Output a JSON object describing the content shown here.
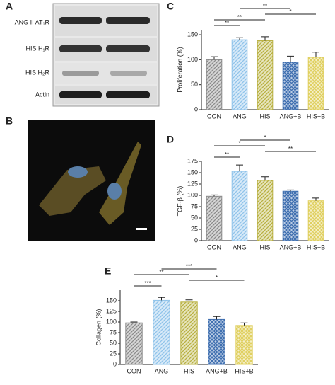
{
  "panel_labels": [
    "A",
    "B",
    "C",
    "D",
    "E"
  ],
  "blot": {
    "rows": [
      "ANG II AT₁R",
      "HIS H₁R",
      "HIS H₂R",
      "Actin"
    ]
  },
  "chart_data": [
    {
      "type": "bar",
      "y_label": "Proliferation (%)",
      "categories": [
        "CON",
        "ANG",
        "HIS",
        "ANG+B",
        "HIS+B"
      ],
      "values": [
        100,
        140,
        138,
        95,
        105
      ],
      "errors": [
        6,
        4,
        8,
        12,
        10
      ],
      "colors": [
        "#8a8a8a",
        "#8fc3ea",
        "#b8b040",
        "#3f6fb0",
        "#e0d060"
      ],
      "hatch": [
        "diagonal",
        "diagonal",
        "diagonal",
        "cross",
        "cross"
      ],
      "ylim": [
        0,
        160
      ],
      "yticks": [
        0,
        50,
        100,
        150
      ],
      "brackets": [
        {
          "from": 0,
          "to": 1,
          "label": "**"
        },
        {
          "from": 0,
          "to": 2,
          "label": "**"
        },
        {
          "from": 2,
          "to": 4,
          "label": "*"
        },
        {
          "from": 1,
          "to": 3,
          "label": "**"
        }
      ]
    },
    {
      "type": "bar",
      "y_label": "TGF-β (%)",
      "categories": [
        "CON",
        "ANG",
        "HIS",
        "ANG+B",
        "HIS+B"
      ],
      "values": [
        98,
        153,
        133,
        109,
        88
      ],
      "errors": [
        3,
        14,
        8,
        3,
        6
      ],
      "colors": [
        "#8a8a8a",
        "#8fc3ea",
        "#b8b040",
        "#3f6fb0",
        "#e0d060"
      ],
      "hatch": [
        "diagonal",
        "diagonal",
        "diagonal",
        "cross",
        "cross"
      ],
      "ylim": [
        0,
        175
      ],
      "yticks": [
        0,
        25,
        50,
        75,
        100,
        125,
        150,
        175
      ],
      "brackets": [
        {
          "from": 0,
          "to": 1,
          "label": "**"
        },
        {
          "from": 2,
          "to": 4,
          "label": "**"
        },
        {
          "from": 0,
          "to": 2,
          "label": "*"
        },
        {
          "from": 1,
          "to": 3,
          "label": "*"
        }
      ]
    },
    {
      "type": "bar",
      "y_label": "Collagen (%)",
      "categories": [
        "CON",
        "ANG",
        "HIS",
        "ANG+B",
        "HIS+B"
      ],
      "values": [
        98,
        151,
        147,
        106,
        92
      ],
      "errors": [
        2,
        7,
        5,
        7,
        6
      ],
      "colors": [
        "#8a8a8a",
        "#8fc3ea",
        "#b8b040",
        "#3f6fb0",
        "#e0d060"
      ],
      "hatch": [
        "diagonal",
        "diagonal",
        "diagonal",
        "cross",
        "cross"
      ],
      "ylim": [
        0,
        175
      ],
      "yticks": [
        0,
        25,
        50,
        75,
        100,
        125,
        150
      ],
      "brackets": [
        {
          "from": 0,
          "to": 1,
          "label": "***"
        },
        {
          "from": 2,
          "to": 4,
          "label": "*"
        },
        {
          "from": 0,
          "to": 2,
          "label": "**"
        },
        {
          "from": 1,
          "to": 3,
          "label": "***"
        }
      ]
    }
  ]
}
